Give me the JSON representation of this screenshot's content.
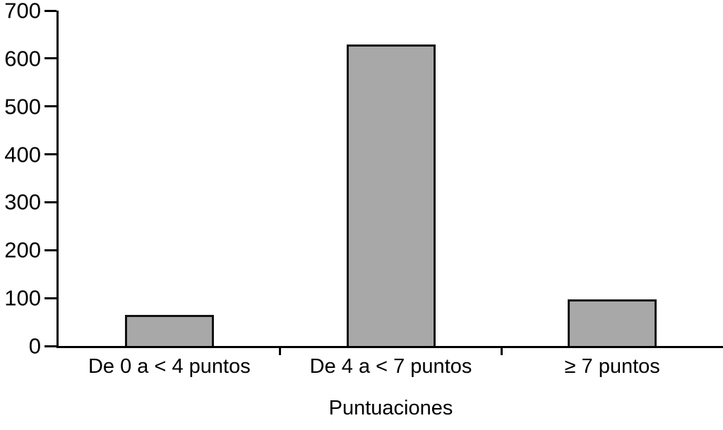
{
  "chart_data": {
    "type": "bar",
    "categories": [
      "De 0 a < 4 puntos",
      "De 4 a < 7 puntos",
      "≥ 7 puntos"
    ],
    "values": [
      65,
      630,
      97
    ],
    "title": "",
    "xlabel": "Puntuaciones",
    "ylabel": "",
    "ylim": [
      0,
      700
    ],
    "yticks": [
      0,
      100,
      200,
      300,
      400,
      500,
      600,
      700
    ],
    "grid": false,
    "legend": null,
    "bar_color": "#a8a8a8",
    "bar_border_color": "#111111",
    "axis_color": "#000000",
    "text_color": "#000000"
  }
}
